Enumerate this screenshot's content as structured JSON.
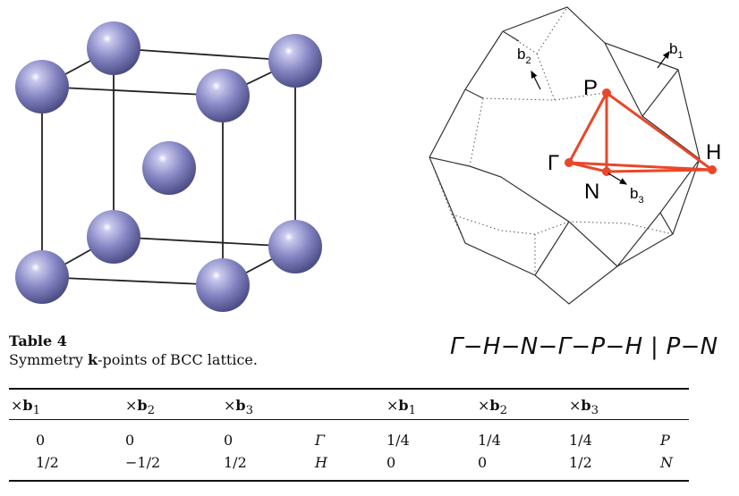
{
  "labels": {
    "b1": "b",
    "b1_sub": "1",
    "b2": "b",
    "b2_sub": "2",
    "b3": "b",
    "b3_sub": "3",
    "P": "P",
    "H": "H",
    "N": "N",
    "Gamma": "Γ"
  },
  "caption": {
    "title": "Table 4",
    "text_pre": "Symmetry ",
    "text_bold": "k",
    "text_post": "-points of BCC lattice."
  },
  "path": "Γ−H−N−Γ−P−H | P−N",
  "table": {
    "headers": [
      {
        "times": "×",
        "b": "b",
        "sub": "1"
      },
      {
        "times": "×",
        "b": "b",
        "sub": "2"
      },
      {
        "times": "×",
        "b": "b",
        "sub": "3"
      },
      {
        "times": "×",
        "b": "b",
        "sub": "1"
      },
      {
        "times": "×",
        "b": "b",
        "sub": "2"
      },
      {
        "times": "×",
        "b": "b",
        "sub": "3"
      }
    ],
    "rows": [
      [
        "0",
        "0",
        "0",
        "Γ",
        "1/4",
        "1/4",
        "1/4",
        "P"
      ],
      [
        "1/2",
        "−1/2",
        "1/2",
        "H",
        "0",
        "0",
        "1/2",
        "N"
      ]
    ]
  },
  "colors": {
    "sphere": "#8484c2",
    "path_line": "#e8472a",
    "edge": "#222222"
  }
}
